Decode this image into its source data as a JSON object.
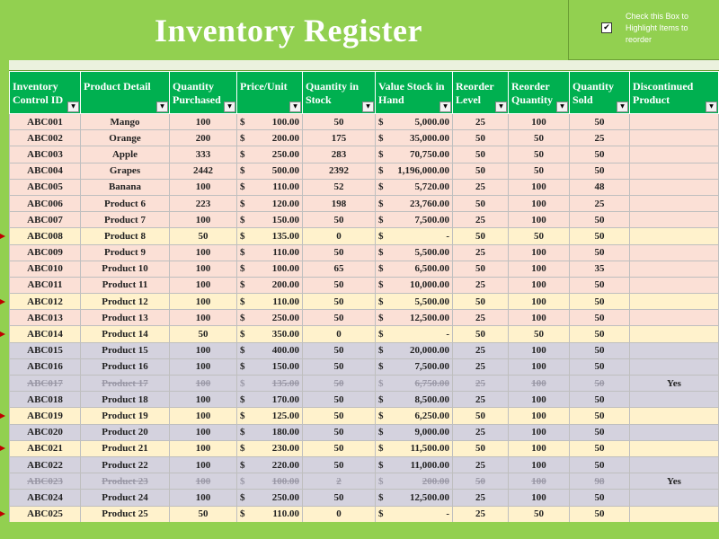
{
  "header": {
    "title": "Inventory Register",
    "toggle_checked": true,
    "toggle_label": "Check this Box to Highlight Items to reorder"
  },
  "columns": [
    {
      "key": "id",
      "label": "Inventory Control ID"
    },
    {
      "key": "product",
      "label": "Product Detail"
    },
    {
      "key": "purchased",
      "label": "Quantity Purchased"
    },
    {
      "key": "price",
      "label": "Price/Unit"
    },
    {
      "key": "in_stock",
      "label": "Quantity in Stock"
    },
    {
      "key": "value",
      "label": "Value Stock in Hand"
    },
    {
      "key": "reorder_level",
      "label": "Reorder Level"
    },
    {
      "key": "reorder_qty",
      "label": "Reorder Quantity"
    },
    {
      "key": "sold",
      "label": "Quantity Sold"
    },
    {
      "key": "discontinued",
      "label": "Discontinued Product"
    }
  ],
  "currency_symbol": "$",
  "rows": [
    {
      "id": "ABC001",
      "product": "Mango",
      "purchased": "100",
      "price": "100.00",
      "in_stock": "50",
      "value": "5,000.00",
      "reorder_level": "25",
      "reorder_qty": "100",
      "sold": "50",
      "discontinued": "",
      "style": "pink",
      "reorder_flag": false
    },
    {
      "id": "ABC002",
      "product": "Orange",
      "purchased": "200",
      "price": "200.00",
      "in_stock": "175",
      "value": "35,000.00",
      "reorder_level": "50",
      "reorder_qty": "50",
      "sold": "25",
      "discontinued": "",
      "style": "pink",
      "reorder_flag": false
    },
    {
      "id": "ABC003",
      "product": "Apple",
      "purchased": "333",
      "price": "250.00",
      "in_stock": "283",
      "value": "70,750.00",
      "reorder_level": "50",
      "reorder_qty": "50",
      "sold": "50",
      "discontinued": "",
      "style": "pink",
      "reorder_flag": false
    },
    {
      "id": "ABC004",
      "product": "Grapes",
      "purchased": "2442",
      "price": "500.00",
      "in_stock": "2392",
      "value": "1,196,000.00",
      "reorder_level": "50",
      "reorder_qty": "50",
      "sold": "50",
      "discontinued": "",
      "style": "pink",
      "reorder_flag": false
    },
    {
      "id": "ABC005",
      "product": "Banana",
      "purchased": "100",
      "price": "110.00",
      "in_stock": "52",
      "value": "5,720.00",
      "reorder_level": "25",
      "reorder_qty": "100",
      "sold": "48",
      "discontinued": "",
      "style": "pink",
      "reorder_flag": false
    },
    {
      "id": "ABC006",
      "product": "Product 6",
      "purchased": "223",
      "price": "120.00",
      "in_stock": "198",
      "value": "23,760.00",
      "reorder_level": "50",
      "reorder_qty": "100",
      "sold": "25",
      "discontinued": "",
      "style": "pink",
      "reorder_flag": false
    },
    {
      "id": "ABC007",
      "product": "Product 7",
      "purchased": "100",
      "price": "150.00",
      "in_stock": "50",
      "value": "7,500.00",
      "reorder_level": "25",
      "reorder_qty": "100",
      "sold": "50",
      "discontinued": "",
      "style": "pink",
      "reorder_flag": false
    },
    {
      "id": "ABC008",
      "product": "Product 8",
      "purchased": "50",
      "price": "135.00",
      "in_stock": "0",
      "value": "-",
      "reorder_level": "50",
      "reorder_qty": "50",
      "sold": "50",
      "discontinued": "",
      "style": "yellow",
      "reorder_flag": true
    },
    {
      "id": "ABC009",
      "product": "Product 9",
      "purchased": "100",
      "price": "110.00",
      "in_stock": "50",
      "value": "5,500.00",
      "reorder_level": "25",
      "reorder_qty": "100",
      "sold": "50",
      "discontinued": "",
      "style": "pink",
      "reorder_flag": false
    },
    {
      "id": "ABC010",
      "product": "Product 10",
      "purchased": "100",
      "price": "100.00",
      "in_stock": "65",
      "value": "6,500.00",
      "reorder_level": "50",
      "reorder_qty": "100",
      "sold": "35",
      "discontinued": "",
      "style": "pink",
      "reorder_flag": false
    },
    {
      "id": "ABC011",
      "product": "Product 11",
      "purchased": "100",
      "price": "200.00",
      "in_stock": "50",
      "value": "10,000.00",
      "reorder_level": "25",
      "reorder_qty": "100",
      "sold": "50",
      "discontinued": "",
      "style": "pink",
      "reorder_flag": false
    },
    {
      "id": "ABC012",
      "product": "Product 12",
      "purchased": "100",
      "price": "110.00",
      "in_stock": "50",
      "value": "5,500.00",
      "reorder_level": "50",
      "reorder_qty": "100",
      "sold": "50",
      "discontinued": "",
      "style": "yellow",
      "reorder_flag": true
    },
    {
      "id": "ABC013",
      "product": "Product 13",
      "purchased": "100",
      "price": "250.00",
      "in_stock": "50",
      "value": "12,500.00",
      "reorder_level": "25",
      "reorder_qty": "100",
      "sold": "50",
      "discontinued": "",
      "style": "pink",
      "reorder_flag": false
    },
    {
      "id": "ABC014",
      "product": "Product 14",
      "purchased": "50",
      "price": "350.00",
      "in_stock": "0",
      "value": "-",
      "reorder_level": "50",
      "reorder_qty": "50",
      "sold": "50",
      "discontinued": "",
      "style": "yellow",
      "reorder_flag": true
    },
    {
      "id": "ABC015",
      "product": "Product 15",
      "purchased": "100",
      "price": "400.00",
      "in_stock": "50",
      "value": "20,000.00",
      "reorder_level": "25",
      "reorder_qty": "100",
      "sold": "50",
      "discontinued": "",
      "style": "gray",
      "reorder_flag": false
    },
    {
      "id": "ABC016",
      "product": "Product 16",
      "purchased": "100",
      "price": "150.00",
      "in_stock": "50",
      "value": "7,500.00",
      "reorder_level": "25",
      "reorder_qty": "100",
      "sold": "50",
      "discontinued": "",
      "style": "gray",
      "reorder_flag": false
    },
    {
      "id": "ABC017",
      "product": "Product 17",
      "purchased": "100",
      "price": "135.00",
      "in_stock": "50",
      "value": "6,750.00",
      "reorder_level": "25",
      "reorder_qty": "100",
      "sold": "50",
      "discontinued": "Yes",
      "style": "disc",
      "reorder_flag": false
    },
    {
      "id": "ABC018",
      "product": "Product 18",
      "purchased": "100",
      "price": "170.00",
      "in_stock": "50",
      "value": "8,500.00",
      "reorder_level": "25",
      "reorder_qty": "100",
      "sold": "50",
      "discontinued": "",
      "style": "gray",
      "reorder_flag": false
    },
    {
      "id": "ABC019",
      "product": "Product 19",
      "purchased": "100",
      "price": "125.00",
      "in_stock": "50",
      "value": "6,250.00",
      "reorder_level": "50",
      "reorder_qty": "100",
      "sold": "50",
      "discontinued": "",
      "style": "yellow",
      "reorder_flag": true
    },
    {
      "id": "ABC020",
      "product": "Product 20",
      "purchased": "100",
      "price": "180.00",
      "in_stock": "50",
      "value": "9,000.00",
      "reorder_level": "25",
      "reorder_qty": "100",
      "sold": "50",
      "discontinued": "",
      "style": "gray",
      "reorder_flag": false
    },
    {
      "id": "ABC021",
      "product": "Product 21",
      "purchased": "100",
      "price": "230.00",
      "in_stock": "50",
      "value": "11,500.00",
      "reorder_level": "50",
      "reorder_qty": "100",
      "sold": "50",
      "discontinued": "",
      "style": "yellow",
      "reorder_flag": true
    },
    {
      "id": "ABC022",
      "product": "Product 22",
      "purchased": "100",
      "price": "220.00",
      "in_stock": "50",
      "value": "11,000.00",
      "reorder_level": "25",
      "reorder_qty": "100",
      "sold": "50",
      "discontinued": "",
      "style": "gray",
      "reorder_flag": false
    },
    {
      "id": "ABC023",
      "product": "Product 23",
      "purchased": "100",
      "price": "100.00",
      "in_stock": "2",
      "value": "200.00",
      "reorder_level": "50",
      "reorder_qty": "100",
      "sold": "98",
      "discontinued": "Yes",
      "style": "disc",
      "reorder_flag": false
    },
    {
      "id": "ABC024",
      "product": "Product 24",
      "purchased": "100",
      "price": "250.00",
      "in_stock": "50",
      "value": "12,500.00",
      "reorder_level": "25",
      "reorder_qty": "100",
      "sold": "50",
      "discontinued": "",
      "style": "gray",
      "reorder_flag": false
    },
    {
      "id": "ABC025",
      "product": "Product 25",
      "purchased": "50",
      "price": "110.00",
      "in_stock": "0",
      "value": "-",
      "reorder_level": "25",
      "reorder_qty": "50",
      "sold": "50",
      "discontinued": "",
      "style": "yellow",
      "reorder_flag": true
    }
  ],
  "colors": {
    "banner_green": "#92d050",
    "header_green": "#00b050",
    "row_pink": "#fbe0d6",
    "row_yellow": "#fff2cc",
    "row_gray": "#d4d2de",
    "reorder_marker": "#c00000"
  },
  "icons": {
    "filter_dropdown": "chevron-down-icon",
    "reorder_marker": "triangle-right-icon",
    "checkbox": "checkbox-checked-icon"
  }
}
